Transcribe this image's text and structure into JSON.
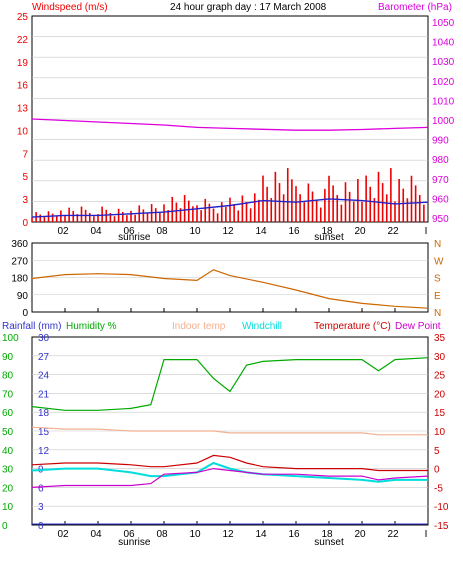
{
  "title": "24 hour graph day : 17 March 2008",
  "colors": {
    "panel_bg": "#ffffff",
    "frame": "#000000",
    "grid": "#c8c8c8",
    "wind": "#ee0000",
    "gust": "#2222cc",
    "barometer": "#dd00dd",
    "wind_dir": "#cc6600",
    "rainfall": "#3333cc",
    "humidity": "#00aa00",
    "indoor": "#f4b090",
    "windchill": "#00dddd",
    "temperature": "#cc0000",
    "dewpoint": "#cc00cc"
  },
  "x_ticks": [
    "02",
    "04",
    "06",
    "08",
    "10",
    "12",
    "14",
    "16",
    "18",
    "20",
    "22",
    "I"
  ],
  "sun_labels": [
    "sunrise",
    "sunset"
  ],
  "chart_data": [
    {
      "type": "line",
      "name": "wind-baro",
      "left_label": "Windspeed (m/s)",
      "right_label": "Barometer (hPa)",
      "y_left_ticks": [
        "25",
        "22",
        "19",
        "16",
        "13",
        "10",
        "7",
        "5",
        "3",
        "0"
      ],
      "y_right_ticks": [
        "1050",
        "1040",
        "1030",
        "1020",
        "1010",
        "1000",
        "990",
        "980",
        "970",
        "960",
        "950"
      ],
      "ylim_left": [
        0,
        25
      ],
      "ylim_right": [
        945,
        1055
      ],
      "x": [
        0,
        2,
        4,
        6,
        8,
        10,
        12,
        14,
        16,
        18,
        20,
        22,
        24
      ],
      "barometer": [
        1000,
        999.2,
        998.4,
        997.6,
        996.8,
        995.5,
        995,
        994.5,
        994,
        994,
        994.4,
        995,
        995.5
      ],
      "windspeed_bars_hourly_max": [
        1.5,
        2,
        2,
        2.5,
        3.5,
        3,
        4,
        7,
        5,
        6,
        7,
        6,
        4
      ],
      "gust_line": [
        0.6,
        0.8,
        0.8,
        1,
        1.2,
        1.6,
        2,
        2.6,
        2.4,
        2.8,
        2.6,
        2.2,
        2.4
      ]
    },
    {
      "type": "line",
      "name": "wind-direction",
      "left_ticks": [
        "360",
        "270",
        "180",
        "90",
        "0"
      ],
      "right_ticks": [
        "N",
        "W",
        "S",
        "E",
        "N"
      ],
      "ylim": [
        0,
        360
      ],
      "x": [
        0,
        2,
        4,
        6,
        8,
        10,
        11,
        12,
        14,
        16,
        18,
        20,
        22,
        24
      ],
      "direction": [
        175,
        195,
        200,
        195,
        175,
        165,
        220,
        190,
        155,
        115,
        70,
        45,
        30,
        20
      ]
    },
    {
      "type": "line",
      "name": "temp-humidity",
      "labels": {
        "rainfall": "Rainfall (mm)",
        "humidity": "Humidity %",
        "indoor": "Indoor temp",
        "windchill": "Windchill",
        "temperature": "Temperature (°C)",
        "dewpoint": "Dew Point"
      },
      "left_humidity_ticks": [
        "100",
        "90",
        "80",
        "70",
        "60",
        "50",
        "40",
        "30",
        "20",
        "10",
        "0"
      ],
      "left_rain_ticks": [
        "30",
        "27",
        "24",
        "21",
        "18",
        "15",
        "12",
        "9",
        "6",
        "3",
        "0"
      ],
      "right_temp_ticks": [
        "35",
        "30",
        "25",
        "20",
        "15",
        "10",
        "5",
        "0",
        "-5",
        "-10",
        "-15"
      ],
      "ylim_humidity": [
        0,
        100
      ],
      "ylim_temp": [
        -15,
        35
      ],
      "x": [
        0,
        2,
        4,
        6,
        7.2,
        8,
        10,
        11,
        12,
        13,
        14,
        16,
        18,
        20,
        21,
        22,
        24
      ],
      "humidity": [
        63,
        61,
        61,
        62,
        64,
        88,
        88,
        78,
        71,
        85,
        87,
        88,
        88,
        88,
        82,
        88,
        89
      ],
      "indoor_temp": [
        11,
        10.5,
        10.5,
        10,
        10,
        10,
        10,
        10,
        9.5,
        9.5,
        9.5,
        9.5,
        9.5,
        9.5,
        9,
        9,
        9
      ],
      "temperature": [
        1,
        1.5,
        1.5,
        1,
        0.5,
        0.5,
        1.5,
        3.5,
        3,
        1.5,
        0.5,
        0,
        0,
        0,
        -0.5,
        -0.5,
        -0.5
      ],
      "windchill": [
        -0.5,
        0,
        0,
        -1,
        -2,
        -2,
        -1,
        1.5,
        0,
        -1,
        -1.5,
        -2,
        -2.5,
        -3,
        -3.5,
        -3,
        -3
      ],
      "dewpoint": [
        -5,
        -4.5,
        -4.5,
        -4.5,
        -4,
        -1.5,
        -1,
        0,
        -0.5,
        -1,
        -1.5,
        -1.5,
        -2,
        -2,
        -3,
        -2.5,
        -2
      ],
      "rainfall_total": [
        0,
        0,
        0,
        0,
        0,
        0,
        0,
        0,
        0,
        0,
        0,
        0,
        0,
        0,
        0,
        0,
        0
      ]
    }
  ]
}
